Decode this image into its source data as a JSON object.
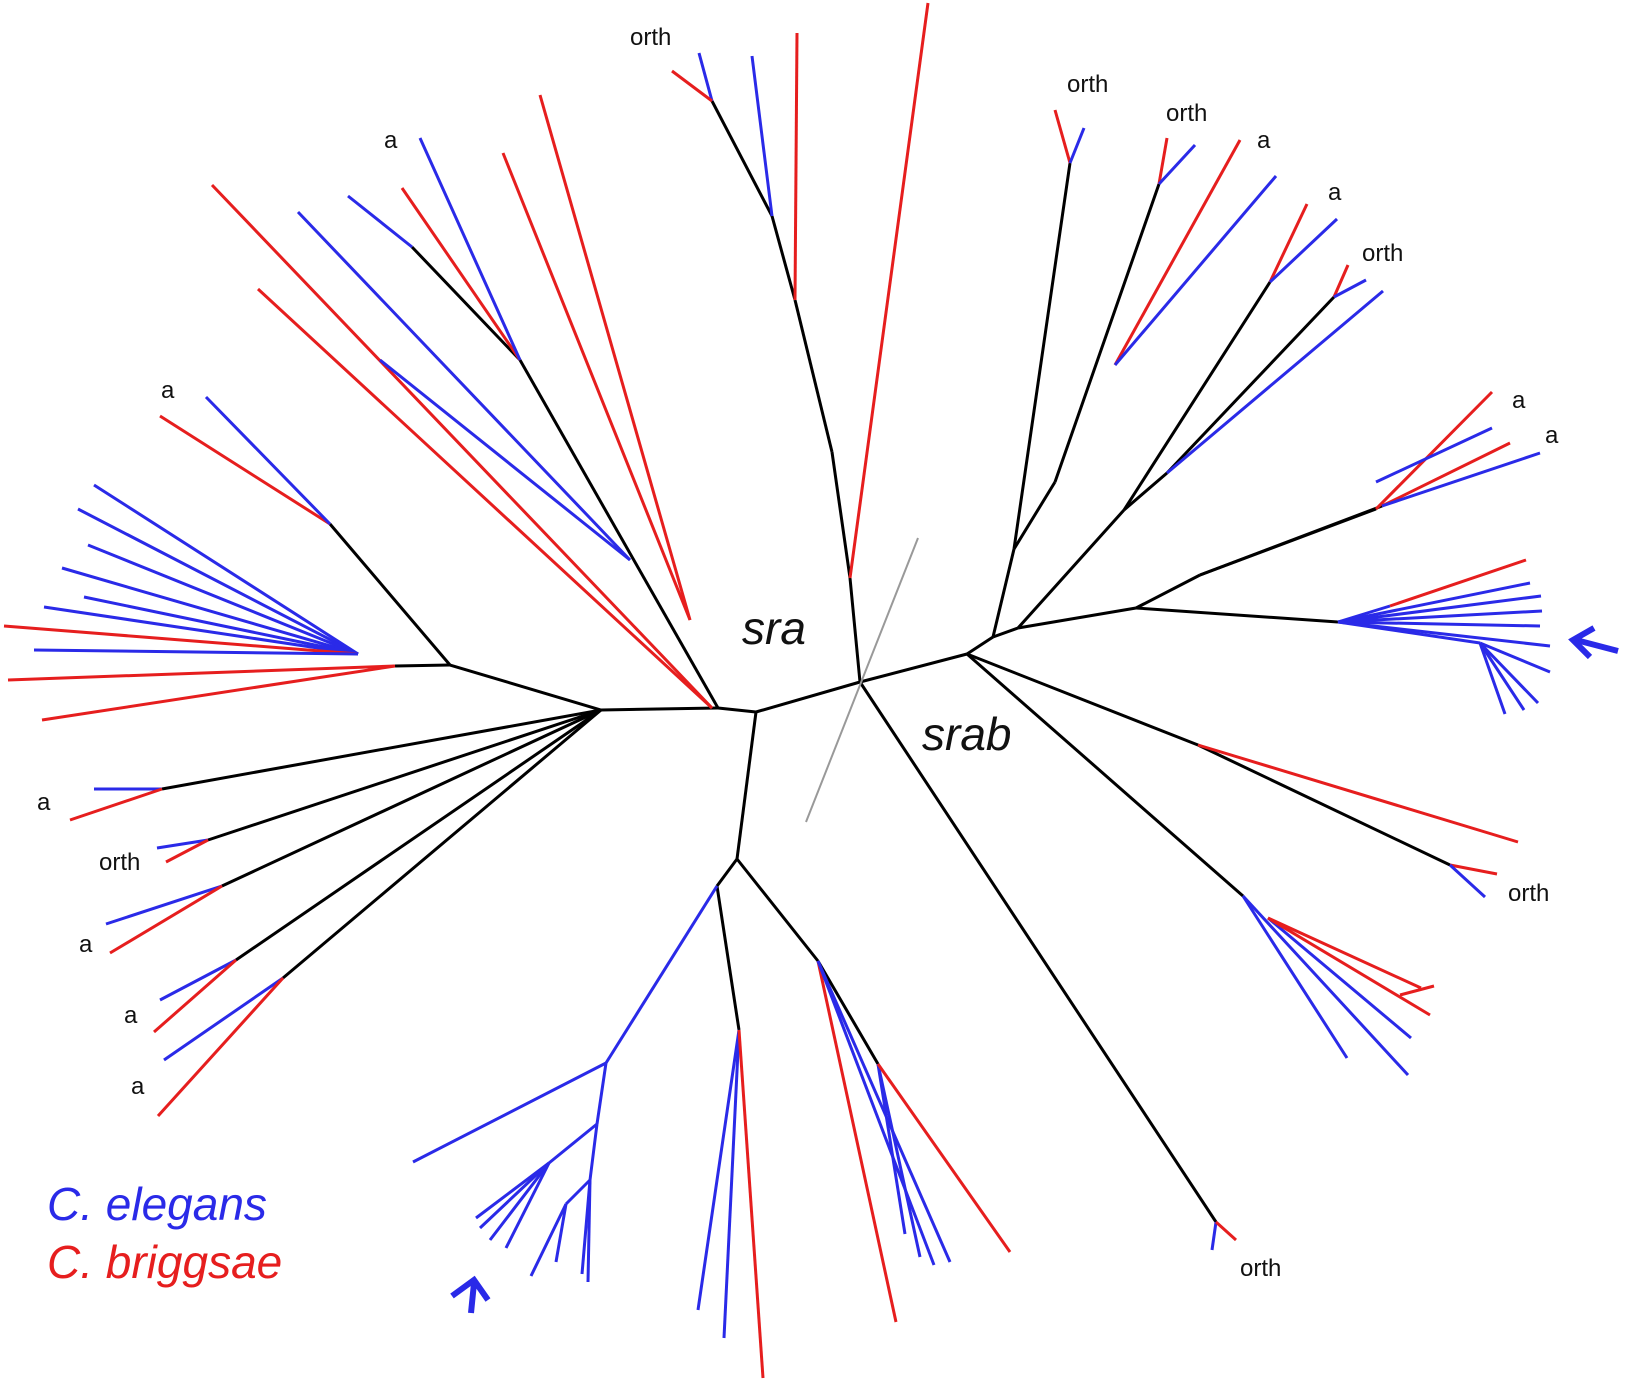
{
  "clades": {
    "left": "sra",
    "right": "srab"
  },
  "legend": {
    "elegans": {
      "label": "C. elegans",
      "color": "#2a2ae8"
    },
    "briggsae": {
      "label": "C. briggsae",
      "color": "#e61e1e"
    }
  },
  "tip_labels": {
    "orth": "orth",
    "a": "a"
  },
  "colors": {
    "internal": "#000000",
    "elegans": "#2a2ae8",
    "briggsae": "#e61e1e",
    "divider": "#999999",
    "arrow": "#2a2ae8"
  }
}
